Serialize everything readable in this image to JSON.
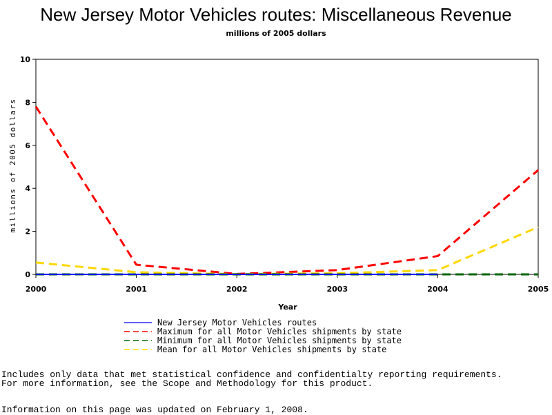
{
  "chart_data": {
    "type": "line",
    "title": "New Jersey Motor Vehicles routes: Miscellaneous Revenue",
    "subtitle": "millions of 2005 dollars",
    "xlabel": "Year",
    "ylabel": "millions of 2005 dollars",
    "x": [
      2000,
      2001,
      2002,
      2003,
      2004,
      2005
    ],
    "xlim": [
      2000,
      2005
    ],
    "ylim": [
      0,
      10
    ],
    "yticks": [
      0,
      2,
      4,
      6,
      8,
      10
    ],
    "grid": false,
    "legend_position": "bottom",
    "series": [
      {
        "name": "New Jersey Motor Vehicles routes",
        "values": [
          0,
          0,
          0,
          0,
          0,
          null
        ],
        "color": "#0000ff",
        "dash": "solid"
      },
      {
        "name": "Maximum for all Motor Vehicles shipments by state",
        "values": [
          7.8,
          0.45,
          0.02,
          0.2,
          0.85,
          4.85
        ],
        "color": "#ff0000",
        "dash": "dashed"
      },
      {
        "name": "Minimum for all Motor Vehicles shipments by state",
        "values": [
          0,
          0,
          0,
          0,
          0,
          0
        ],
        "color": "#006600",
        "dash": "dashed"
      },
      {
        "name": "Mean for all Motor Vehicles shipments by state",
        "values": [
          0.55,
          0.1,
          0.01,
          0.05,
          0.2,
          2.2
        ],
        "color": "#ffd700",
        "dash": "dashed"
      }
    ]
  },
  "footnotes": {
    "line1": "Includes only data that met statistical confidence and confidentialty reporting requirements.",
    "line2": "For more information, see the Scope and Methodology for this product.",
    "line3": "Information on this page was updated on February 1, 2008."
  }
}
